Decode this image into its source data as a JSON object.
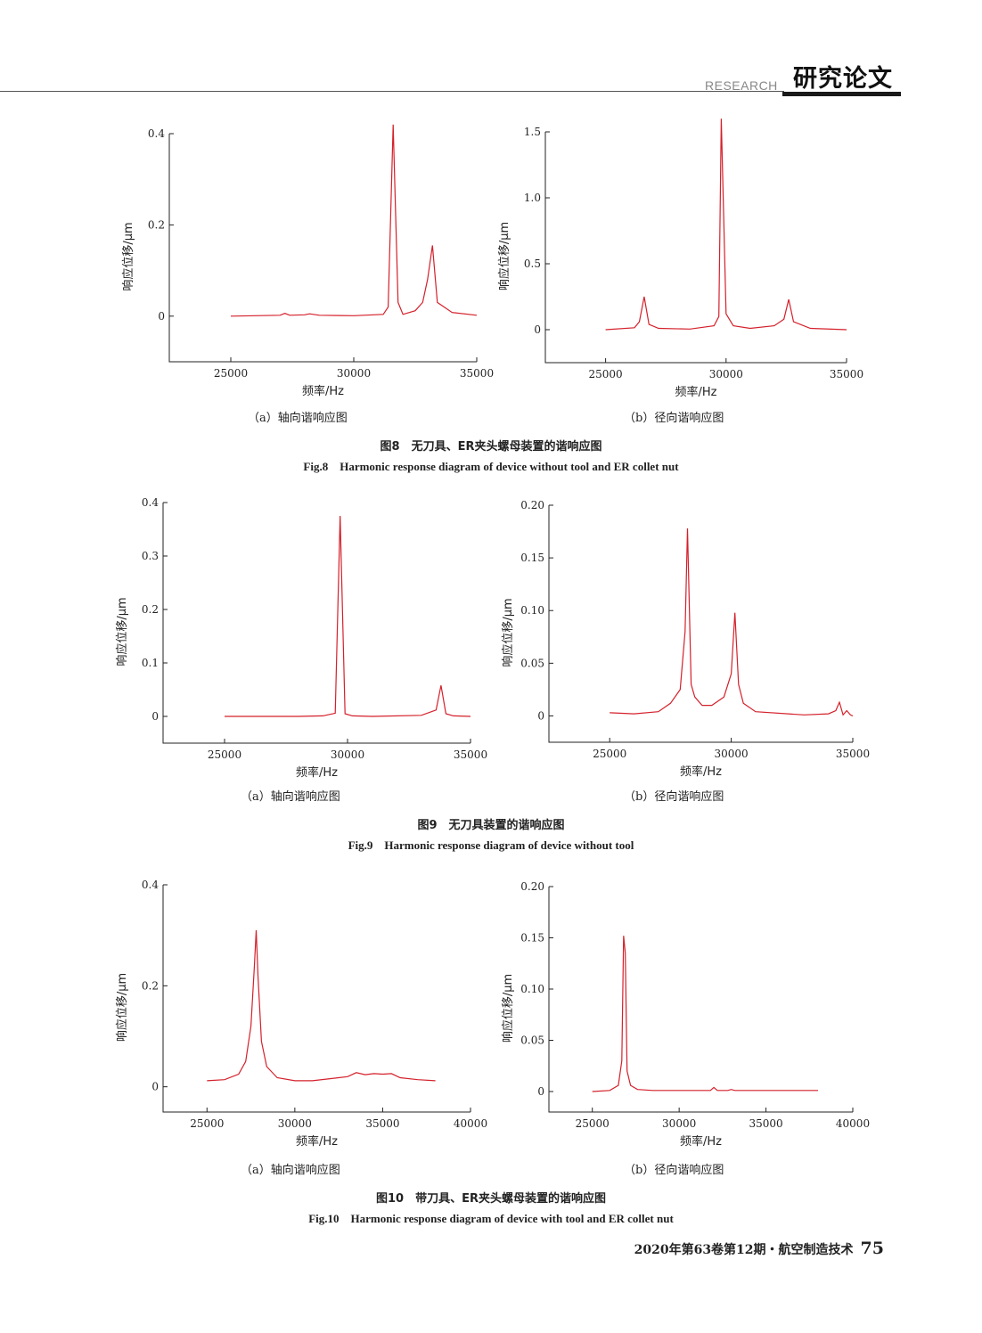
{
  "header": {
    "section_en": "RESEARCH",
    "section_zh": "研究论文"
  },
  "figures": [
    {
      "caption_zh": "图8　无刀具、ER夹头螺母装置的谐响应图",
      "caption_en": "Fig.8　Harmonic response diagram of device without tool and ER collet nut",
      "panels": [
        {
          "subcaption": "（a）轴向谐响应图"
        },
        {
          "subcaption": "（b）径向谐响应图"
        }
      ]
    },
    {
      "caption_zh": "图9　无刀具装置的谐响应图",
      "caption_en": "Fig.9　Harmonic response diagram of device without tool",
      "panels": [
        {
          "subcaption": "（a）轴向谐响应图"
        },
        {
          "subcaption": "（b）径向谐响应图"
        }
      ]
    },
    {
      "caption_zh": "图10　带刀具、ER夹头螺母装置的谐响应图",
      "caption_en": "Fig.10　Harmonic response diagram of device with tool and ER collet nut",
      "panels": [
        {
          "subcaption": "（a）轴向谐响应图"
        },
        {
          "subcaption": "（b）径向谐响应图"
        }
      ]
    }
  ],
  "chart_data": [
    {
      "type": "line",
      "xlabel": "频率/Hz",
      "ylabel": "响应位移/μm",
      "xlim": [
        22500,
        35000
      ],
      "ylim": [
        -0.1,
        0.4
      ],
      "xticks": [
        25000,
        30000,
        35000
      ],
      "yticks": [
        0,
        0.2,
        0.4
      ],
      "ytick_labels": [
        "0",
        "0.2",
        "0.4"
      ],
      "x": [
        25000,
        27000,
        27200,
        27400,
        28000,
        28200,
        28600,
        30000,
        31200,
        31400,
        31600,
        31800,
        32000,
        32500,
        32800,
        33000,
        33200,
        33400,
        34000,
        35000
      ],
      "y": [
        0,
        0.002,
        0.006,
        0.002,
        0.003,
        0.005,
        0.002,
        0.001,
        0.004,
        0.02,
        0.42,
        0.03,
        0.004,
        0.012,
        0.03,
        0.08,
        0.155,
        0.03,
        0.008,
        0.002
      ]
    },
    {
      "type": "line",
      "xlabel": "频率/Hz",
      "ylabel": "响应位移/μm",
      "xlim": [
        22500,
        35000
      ],
      "ylim": [
        -0.25,
        1.5
      ],
      "xticks": [
        25000,
        30000,
        35000
      ],
      "yticks": [
        0,
        0.5,
        1.0,
        1.5
      ],
      "ytick_labels": [
        "0",
        "0.5",
        "1.0",
        "1.5"
      ],
      "x": [
        25000,
        26200,
        26400,
        26600,
        26800,
        27200,
        28500,
        29500,
        29700,
        29800,
        30000,
        30300,
        31000,
        32000,
        32400,
        32600,
        32800,
        33500,
        35000
      ],
      "y": [
        0,
        0.015,
        0.06,
        0.25,
        0.04,
        0.01,
        0.005,
        0.03,
        0.1,
        1.6,
        0.12,
        0.03,
        0.01,
        0.03,
        0.08,
        0.23,
        0.06,
        0.01,
        0
      ]
    },
    {
      "type": "line",
      "xlabel": "频率/Hz",
      "ylabel": "响应位移/μm",
      "xlim": [
        22500,
        35000
      ],
      "ylim": [
        -0.05,
        0.4
      ],
      "xticks": [
        25000,
        30000,
        35000
      ],
      "yticks": [
        0,
        0.1,
        0.2,
        0.3,
        0.4
      ],
      "ytick_labels": [
        "0",
        "0.1",
        "0.2",
        "0.3",
        "0.4"
      ],
      "x": [
        25000,
        28000,
        29000,
        29500,
        29700,
        29900,
        30200,
        31000,
        33000,
        33600,
        33800,
        34000,
        34300,
        35000
      ],
      "y": [
        0,
        0,
        0.001,
        0.006,
        0.375,
        0.005,
        0.001,
        0,
        0.002,
        0.012,
        0.058,
        0.005,
        0.001,
        0
      ]
    },
    {
      "type": "line",
      "xlabel": "频率/Hz",
      "ylabel": "响应位移/μm",
      "xlim": [
        22500,
        35000
      ],
      "ylim": [
        -0.025,
        0.2
      ],
      "xticks": [
        25000,
        30000,
        35000
      ],
      "yticks": [
        0,
        0.05,
        0.1,
        0.15,
        0.2
      ],
      "ytick_labels": [
        "0",
        "0.05",
        "0.10",
        "0.15",
        "0.20"
      ],
      "x": [
        25000,
        26000,
        27000,
        27500,
        27900,
        28100,
        28200,
        28350,
        28500,
        28800,
        29200,
        29700,
        30000,
        30150,
        30300,
        30500,
        31000,
        33000,
        34000,
        34300,
        34450,
        34600,
        34750,
        34900,
        35000
      ],
      "y": [
        0.003,
        0.002,
        0.004,
        0.012,
        0.025,
        0.08,
        0.178,
        0.03,
        0.018,
        0.01,
        0.01,
        0.018,
        0.04,
        0.098,
        0.03,
        0.012,
        0.004,
        0.001,
        0.002,
        0.005,
        0.013,
        0.001,
        0.005,
        0.001,
        0
      ]
    },
    {
      "type": "line",
      "xlabel": "频率/Hz",
      "ylabel": "响应位移/μm",
      "xlim": [
        22500,
        40000
      ],
      "ylim": [
        -0.05,
        0.4
      ],
      "xticks": [
        25000,
        30000,
        35000,
        40000
      ],
      "yticks": [
        0,
        0.2,
        0.4
      ],
      "ytick_labels": [
        "0",
        "0.2",
        "0.4"
      ],
      "x": [
        25000,
        26000,
        26800,
        27200,
        27500,
        27700,
        27800,
        27900,
        28100,
        28400,
        29000,
        30000,
        31000,
        32000,
        33000,
        33500,
        34000,
        34500,
        35000,
        35500,
        36000,
        37000,
        38000
      ],
      "y": [
        0.012,
        0.014,
        0.025,
        0.05,
        0.12,
        0.24,
        0.31,
        0.22,
        0.09,
        0.04,
        0.018,
        0.012,
        0.012,
        0.016,
        0.02,
        0.028,
        0.024,
        0.026,
        0.025,
        0.026,
        0.018,
        0.014,
        0.012
      ]
    },
    {
      "type": "line",
      "xlabel": "频率/Hz",
      "ylabel": "响应位移/μm",
      "xlim": [
        22500,
        40000
      ],
      "ylim": [
        -0.02,
        0.2
      ],
      "xticks": [
        25000,
        30000,
        35000,
        40000
      ],
      "yticks": [
        0,
        0.05,
        0.1,
        0.15,
        0.2
      ],
      "ytick_labels": [
        "0",
        "0.05",
        "0.10",
        "0.15",
        "0.20"
      ],
      "x": [
        25000,
        26000,
        26500,
        26700,
        26800,
        26900,
        27000,
        27200,
        27600,
        28500,
        30000,
        31800,
        32000,
        32200,
        32800,
        33000,
        33200,
        34000,
        36000,
        38000
      ],
      "y": [
        0,
        0.001,
        0.006,
        0.03,
        0.152,
        0.135,
        0.02,
        0.006,
        0.002,
        0.001,
        0.001,
        0.001,
        0.004,
        0.001,
        0.001,
        0.002,
        0.001,
        0.001,
        0.001,
        0.001
      ]
    }
  ],
  "footer": {
    "journal": "2020年第63卷第12期・航空制造技术",
    "page": "75"
  }
}
